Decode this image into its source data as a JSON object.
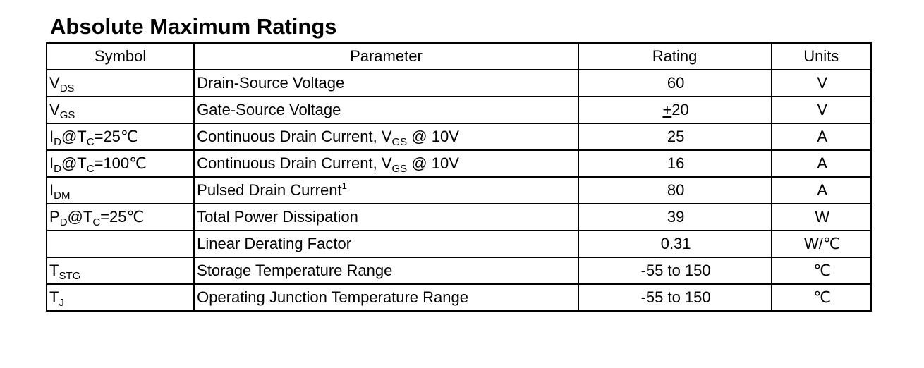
{
  "title": "Absolute Maximum Ratings",
  "headers": {
    "symbol": "Symbol",
    "parameter": "Parameter",
    "rating": "Rating",
    "units": "Units"
  },
  "rows": [
    {
      "sym_main": "V",
      "sym_sub": "DS",
      "sym_eq": "",
      "sym_sub2": "",
      "sym_tail": "",
      "param": "Drain-Source Voltage",
      "param_sub": "",
      "param_tail": "",
      "param_sup": "",
      "rating_prefix": "",
      "rating": "60",
      "units": "V"
    },
    {
      "sym_main": "V",
      "sym_sub": "GS",
      "sym_eq": "",
      "sym_sub2": "",
      "sym_tail": "",
      "param": "Gate-Source Voltage",
      "param_sub": "",
      "param_tail": "",
      "param_sup": "",
      "rating_prefix": "+",
      "rating": "20",
      "units": "V"
    },
    {
      "sym_main": "I",
      "sym_sub": "D",
      "sym_eq": "@T",
      "sym_sub2": "C",
      "sym_tail": "=25℃",
      "param": "Continuous Drain Current, V",
      "param_sub": "GS",
      "param_tail": " @ 10V",
      "param_sup": "",
      "rating_prefix": "",
      "rating": "25",
      "units": "A"
    },
    {
      "sym_main": "I",
      "sym_sub": "D",
      "sym_eq": "@T",
      "sym_sub2": "C",
      "sym_tail": "=100℃",
      "param": "Continuous Drain Current, V",
      "param_sub": "GS",
      "param_tail": " @ 10V",
      "param_sup": "",
      "rating_prefix": "",
      "rating": "16",
      "units": "A"
    },
    {
      "sym_main": "I",
      "sym_sub": "DM",
      "sym_eq": "",
      "sym_sub2": "",
      "sym_tail": "",
      "param": "Pulsed Drain Current",
      "param_sub": "",
      "param_tail": "",
      "param_sup": "1",
      "rating_prefix": "",
      "rating": "80",
      "units": "A"
    },
    {
      "sym_main": "P",
      "sym_sub": "D",
      "sym_eq": "@T",
      "sym_sub2": "C",
      "sym_tail": "=25℃",
      "param": "Total Power Dissipation",
      "param_sub": "",
      "param_tail": "",
      "param_sup": "",
      "rating_prefix": "",
      "rating": "39",
      "units": "W"
    },
    {
      "sym_main": "",
      "sym_sub": "",
      "sym_eq": "",
      "sym_sub2": "",
      "sym_tail": "",
      "param": "Linear Derating Factor",
      "param_sub": "",
      "param_tail": "",
      "param_sup": "",
      "rating_prefix": "",
      "rating": "0.31",
      "units": "W/℃"
    },
    {
      "sym_main": "T",
      "sym_sub": "STG",
      "sym_eq": "",
      "sym_sub2": "",
      "sym_tail": "",
      "param": "Storage Temperature Range",
      "param_sub": "",
      "param_tail": "",
      "param_sup": "",
      "rating_prefix": "",
      "rating": "-55 to 150",
      "units": "℃"
    },
    {
      "sym_main": "T",
      "sym_sub": "J",
      "sym_eq": "",
      "sym_sub2": "",
      "sym_tail": "",
      "param": "Operating Junction Temperature Range",
      "param_sub": "",
      "param_tail": "",
      "param_sup": "",
      "rating_prefix": "",
      "rating": "-55 to 150",
      "units": "℃"
    }
  ]
}
